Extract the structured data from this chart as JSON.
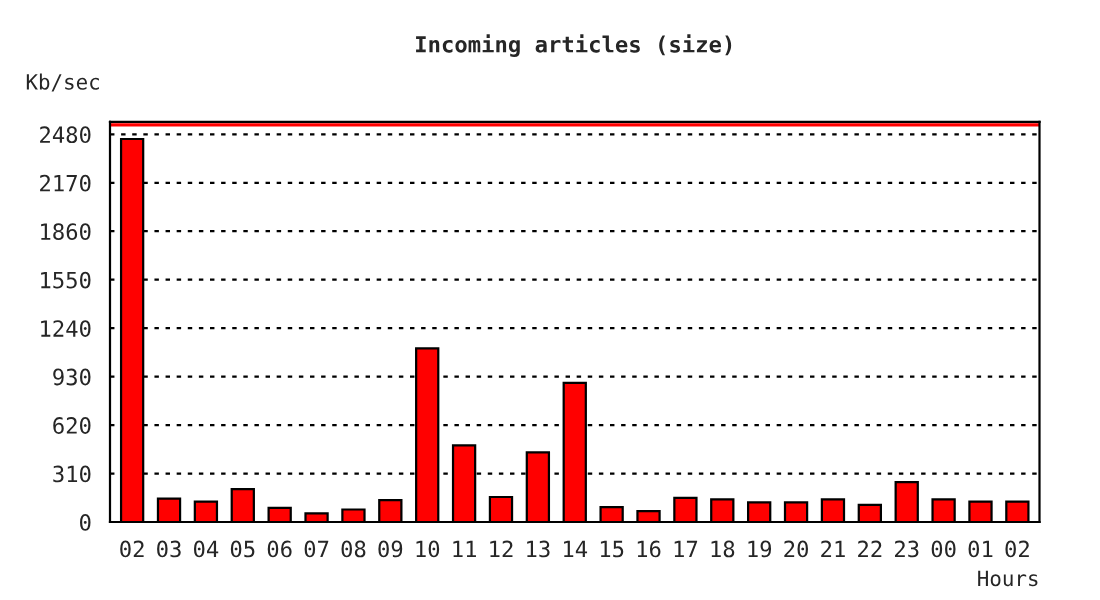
{
  "chart_data": {
    "type": "bar",
    "title": "Incoming articles (size)",
    "ylabel": "Kb/sec",
    "xlabel": "Hours",
    "categories": [
      "02",
      "03",
      "04",
      "05",
      "06",
      "07",
      "08",
      "09",
      "10",
      "11",
      "12",
      "13",
      "14",
      "15",
      "16",
      "17",
      "18",
      "19",
      "20",
      "21",
      "22",
      "23",
      "00",
      "01",
      "02"
    ],
    "series": [
      {
        "color": "#ff0000",
        "values": [
          2450,
          150,
          130,
          210,
          90,
          55,
          80,
          140,
          1110,
          490,
          160,
          445,
          890,
          95,
          70,
          155,
          145,
          125,
          125,
          145,
          110,
          255,
          145,
          130,
          130
        ]
      }
    ],
    "ylim": [
      0,
      2560
    ],
    "yticks": [
      0,
      310,
      620,
      930,
      1240,
      1550,
      1860,
      2170,
      2480
    ],
    "grid": "y",
    "ref_lines": [
      {
        "axis": "y",
        "value": 2540,
        "color": "#ff0000"
      }
    ]
  }
}
